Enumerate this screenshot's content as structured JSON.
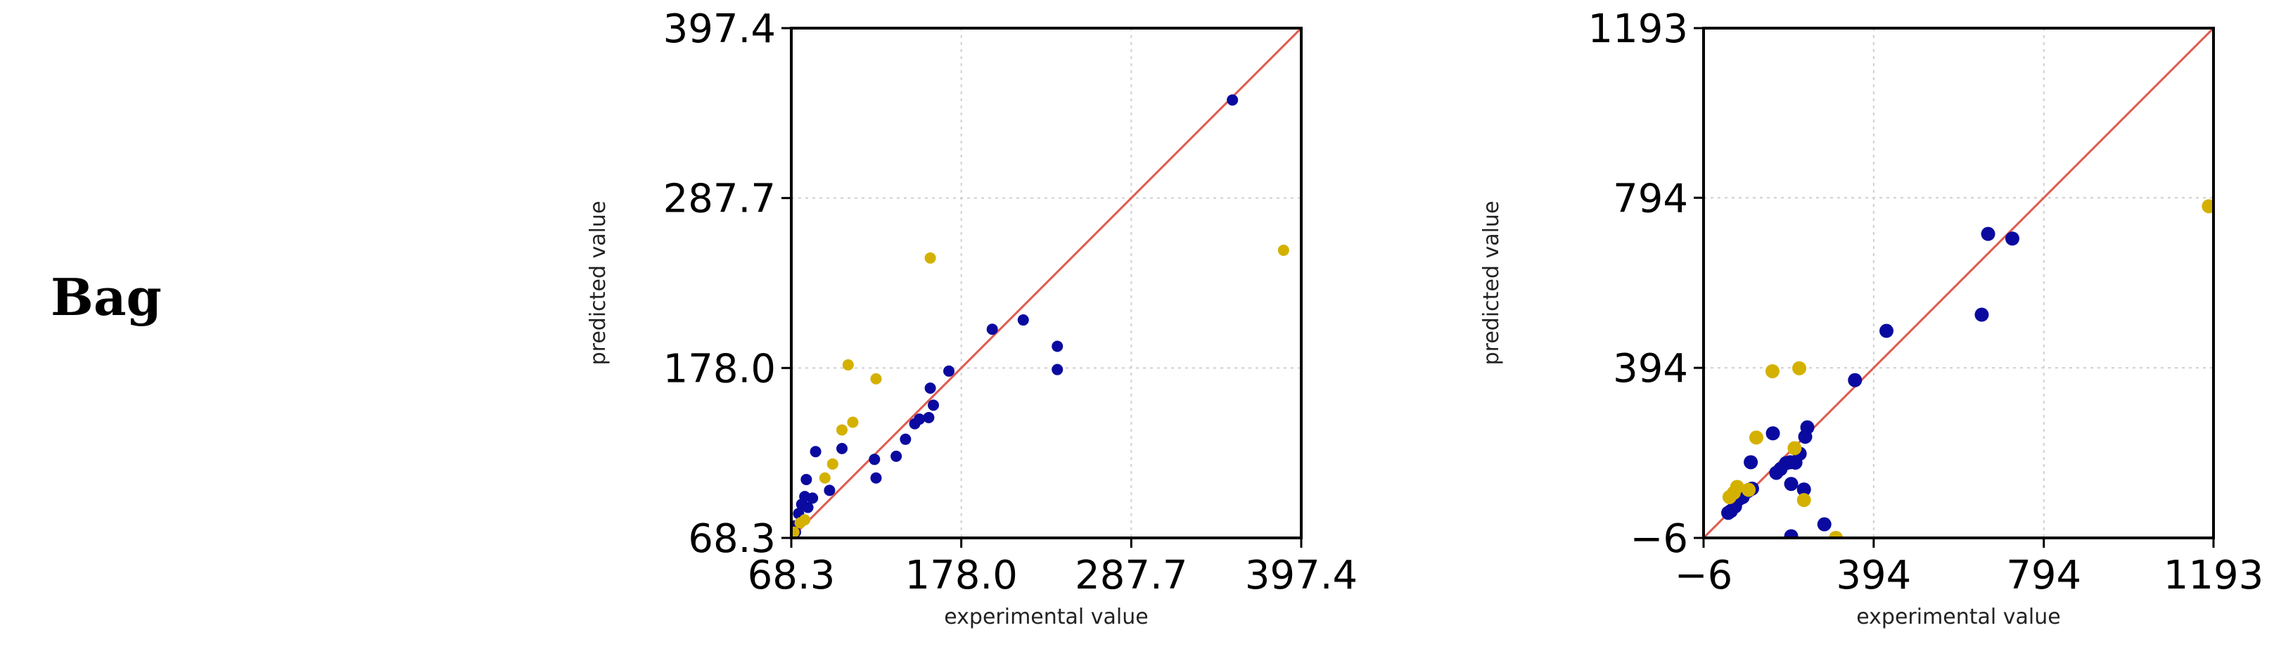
{
  "row_label": "Bag",
  "colors": {
    "series_a": "#0a0aa0",
    "series_b": "#d4b100",
    "identity_line": "#e05a4e"
  },
  "chart_data": [
    {
      "type": "scatter",
      "xlabel": "experimental value",
      "ylabel": "predicted value",
      "xlim": [
        68.3,
        397.4
      ],
      "ylim": [
        68.3,
        397.4
      ],
      "xticks": [
        "68.3",
        "178.0",
        "287.7",
        "397.4"
      ],
      "yticks": [
        "68.3",
        "178.0",
        "287.7",
        "397.4"
      ],
      "tick_values": [
        68.3,
        178.0,
        287.7,
        397.4
      ],
      "grid": true,
      "identity_line": true,
      "series": [
        {
          "color": "#0a0aa0",
          "points": [
            [
              353.0,
              351.0
            ],
            [
              240.0,
              192.0
            ],
            [
              240.0,
              177.0
            ],
            [
              218.0,
              209.0
            ],
            [
              198.0,
              203.0
            ],
            [
              170.0,
              176.0
            ],
            [
              158.0,
              165.0
            ],
            [
              160.0,
              154.0
            ],
            [
              157.0,
              146.0
            ],
            [
              151.0,
              145.0
            ],
            [
              148.0,
              142.0
            ],
            [
              142.0,
              132.0
            ],
            [
              136.0,
              121.0
            ],
            [
              122.0,
              119.0
            ],
            [
              123.0,
              107.0
            ],
            [
              101.0,
              126.0
            ],
            [
              84.0,
              124.0
            ],
            [
              93.0,
              99.0
            ],
            [
              78.0,
              106.0
            ],
            [
              77.0,
              95.0
            ],
            [
              79.0,
              88.0
            ],
            [
              75.0,
              90.0
            ],
            [
              73.0,
              84.0
            ],
            [
              70.0,
              76.0
            ],
            [
              71.0,
              72.0
            ],
            [
              82.0,
              94.0
            ]
          ]
        },
        {
          "color": "#d4b100",
          "points": [
            [
              386.0,
              254.0
            ],
            [
              158.0,
              249.0
            ],
            [
              105.0,
              180.0
            ],
            [
              123.0,
              171.0
            ],
            [
              108.0,
              143.0
            ],
            [
              101.0,
              138.0
            ],
            [
              95.0,
              116.0
            ],
            [
              90.0,
              107.0
            ],
            [
              70.0,
              72.0
            ],
            [
              74.0,
              78.0
            ],
            [
              77.0,
              80.0
            ]
          ]
        }
      ]
    },
    {
      "type": "scatter",
      "xlabel": "experimental value",
      "ylabel": "predicted value",
      "xlim": [
        -6,
        1193
      ],
      "ylim": [
        -6,
        1193
      ],
      "xticks": [
        "−6",
        "394",
        "794",
        "1193"
      ],
      "yticks": [
        "−6",
        "394",
        "794",
        "1193"
      ],
      "tick_values": [
        -6,
        394,
        794,
        1193
      ],
      "grid": true,
      "identity_line": true,
      "series": [
        {
          "color": "#0a0aa0",
          "points": [
            [
              663.0,
              709.0
            ],
            [
              720.0,
              698.0
            ],
            [
              648.0,
              519.0
            ],
            [
              424.0,
              481.0
            ],
            [
              350.0,
              365.0
            ],
            [
              238.0,
              254.0
            ],
            [
              233.0,
              232.0
            ],
            [
              220.0,
              192.0
            ],
            [
              210.0,
              171.0
            ],
            [
              198.0,
              172.0
            ],
            [
              188.0,
              170.0
            ],
            [
              175.0,
              156.0
            ],
            [
              165.0,
              147.0
            ],
            [
              157.0,
              240.0
            ],
            [
              105.0,
              172.0
            ],
            [
              108.0,
              110.0
            ],
            [
              98.0,
              104.0
            ],
            [
              86.0,
              90.0
            ],
            [
              68.0,
              68.0
            ],
            [
              58.0,
              57.0
            ],
            [
              52.0,
              53.0
            ],
            [
              78.0,
              86.0
            ],
            [
              200.0,
              121.0
            ],
            [
              230.0,
              108.0
            ],
            [
              278.0,
              26.0
            ],
            [
              200.0,
              -2.0
            ]
          ]
        },
        {
          "color": "#d4b100",
          "points": [
            [
              1182.0,
              774.0
            ],
            [
              219.0,
              393.0
            ],
            [
              156.0,
              386.0
            ],
            [
              118.0,
              230.0
            ],
            [
              208.0,
              205.0
            ],
            [
              73.0,
              114.0
            ],
            [
              65.0,
              100.0
            ],
            [
              55.0,
              90.0
            ],
            [
              100.0,
              107.0
            ],
            [
              230.0,
              83.0
            ],
            [
              305.0,
              -6.0
            ]
          ]
        }
      ]
    }
  ]
}
